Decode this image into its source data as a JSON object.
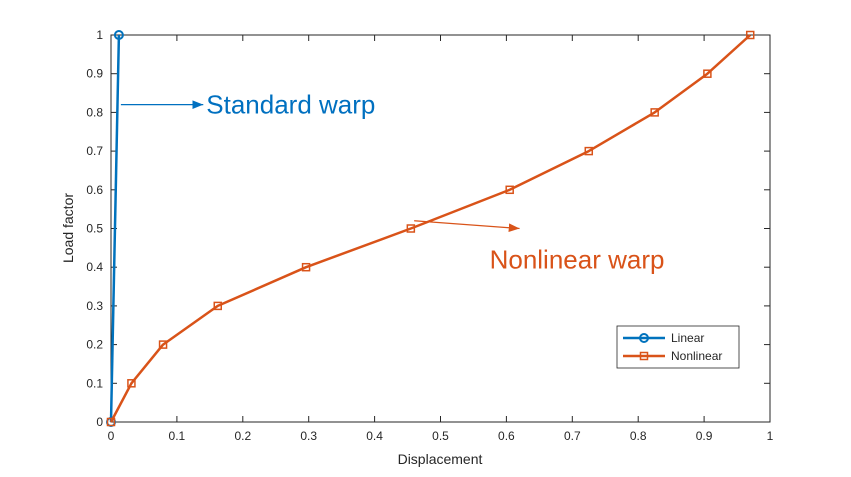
{
  "chart_data": {
    "type": "line",
    "xlabel": "Displacement",
    "ylabel": "Load factor",
    "xlim": [
      0,
      1
    ],
    "ylim": [
      0,
      1
    ],
    "xticks": [
      "0",
      "0.1",
      "0.2",
      "0.3",
      "0.4",
      "0.5",
      "0.6",
      "0.7",
      "0.8",
      "0.9",
      "1"
    ],
    "yticks": [
      "0",
      "0.1",
      "0.2",
      "0.3",
      "0.4",
      "0.5",
      "0.6",
      "0.7",
      "0.8",
      "0.9",
      "1"
    ],
    "grid": false,
    "legend_position": "bottom-right",
    "series": [
      {
        "name": "Linear",
        "color": "#0072BD",
        "marker": "circle",
        "x": [
          0,
          0.012
        ],
        "y": [
          0,
          1
        ]
      },
      {
        "name": "Nonlinear",
        "color": "#D95319",
        "marker": "square",
        "x": [
          0,
          0.031,
          0.079,
          0.162,
          0.296,
          0.455,
          0.605,
          0.725,
          0.825,
          0.905,
          0.97
        ],
        "y": [
          0,
          0.1,
          0.2,
          0.3,
          0.4,
          0.5,
          0.6,
          0.7,
          0.8,
          0.9,
          1
        ]
      }
    ],
    "annotations": [
      {
        "text": "Standard warp",
        "color": "#0070C0",
        "from": [
          0.015,
          0.82
        ],
        "to": [
          0.14,
          0.82
        ]
      },
      {
        "text": "Nonlinear warp",
        "color": "#D95319",
        "from": [
          0.46,
          0.52
        ],
        "to": [
          0.62,
          0.5
        ]
      }
    ]
  }
}
